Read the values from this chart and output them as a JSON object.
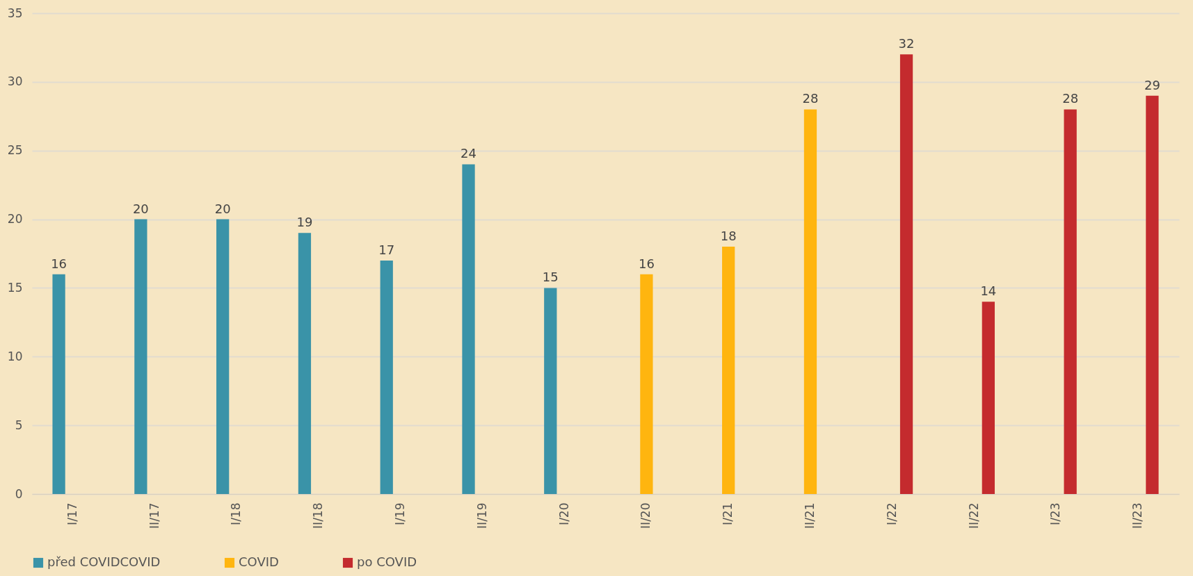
{
  "chart_data": {
    "type": "bar",
    "categories": [
      "I/17",
      "II/17",
      "I/18",
      "II/18",
      "I/19",
      "II/19",
      "I/20",
      "II/20",
      "I/21",
      "II/21",
      "I/22",
      "II/22",
      "I/23",
      "II/23"
    ],
    "series": [
      {
        "name": "před COVIDCOVID",
        "color": "#3a93a8",
        "values": [
          16,
          20,
          20,
          19,
          17,
          24,
          15,
          null,
          null,
          null,
          null,
          null,
          null,
          null
        ]
      },
      {
        "name": "COVID",
        "color": "#ffb50f",
        "values": [
          null,
          null,
          null,
          null,
          null,
          null,
          null,
          16,
          18,
          28,
          null,
          null,
          null,
          null
        ]
      },
      {
        "name": "po COVID",
        "color": "#c42b2e",
        "values": [
          null,
          null,
          null,
          null,
          null,
          null,
          null,
          null,
          null,
          null,
          32,
          14,
          28,
          29
        ]
      }
    ],
    "ylim": [
      0,
      35
    ],
    "yticks": [
      0,
      5,
      10,
      15,
      20,
      25,
      30,
      35
    ],
    "grid": "y",
    "legend": "bottom",
    "data_labels": true
  }
}
